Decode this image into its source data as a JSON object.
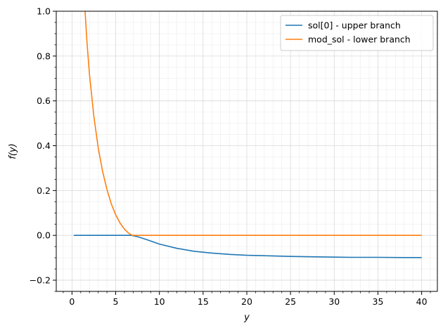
{
  "chart_data": {
    "type": "line",
    "xlabel": "y",
    "ylabel": "f(y)",
    "xlim": [
      -1.8,
      41.8
    ],
    "ylim": [
      -0.25,
      1.0
    ],
    "xticks": [
      0,
      5,
      10,
      15,
      20,
      25,
      30,
      35,
      40
    ],
    "yticks": [
      -0.2,
      0.0,
      0.2,
      0.4,
      0.6,
      0.8,
      1.0
    ],
    "xtick_labels": [
      "0",
      "5",
      "10",
      "15",
      "20",
      "25",
      "30",
      "35",
      "40"
    ],
    "ytick_labels": [
      "−0.2",
      "0.0",
      "0.2",
      "0.4",
      "0.6",
      "0.8",
      "1.0"
    ],
    "grid": "major and minor",
    "legend_position": "upper-right",
    "series": [
      {
        "name": "sol[0] - upper branch",
        "color": "#1f77b4",
        "x": [
          0.2,
          2,
          4,
          6,
          6.8,
          7.5,
          8,
          9,
          10,
          12,
          14,
          16,
          18,
          20,
          22,
          25,
          28,
          30,
          32,
          35,
          38,
          40
        ],
        "y": [
          0.0,
          0.0,
          0.0,
          0.0,
          0.0,
          -0.006,
          -0.012,
          -0.025,
          -0.039,
          -0.058,
          -0.071,
          -0.079,
          -0.085,
          -0.089,
          -0.091,
          -0.094,
          -0.096,
          -0.097,
          -0.098,
          -0.098,
          -0.099,
          -0.099
        ]
      },
      {
        "name": "mod_sol - lower branch",
        "color": "#ff7f0e",
        "x": [
          1.5,
          1.7,
          2.0,
          2.5,
          3.0,
          3.5,
          4.0,
          4.5,
          5.0,
          5.5,
          6.0,
          6.5,
          6.9,
          8,
          10,
          15,
          20,
          25,
          30,
          35,
          40
        ],
        "y": [
          1.0,
          0.87,
          0.72,
          0.53,
          0.39,
          0.285,
          0.205,
          0.14,
          0.092,
          0.055,
          0.028,
          0.009,
          0.0,
          0.0,
          0.0,
          0.0,
          0.0,
          0.0,
          0.0,
          0.0,
          0.0
        ]
      }
    ]
  }
}
